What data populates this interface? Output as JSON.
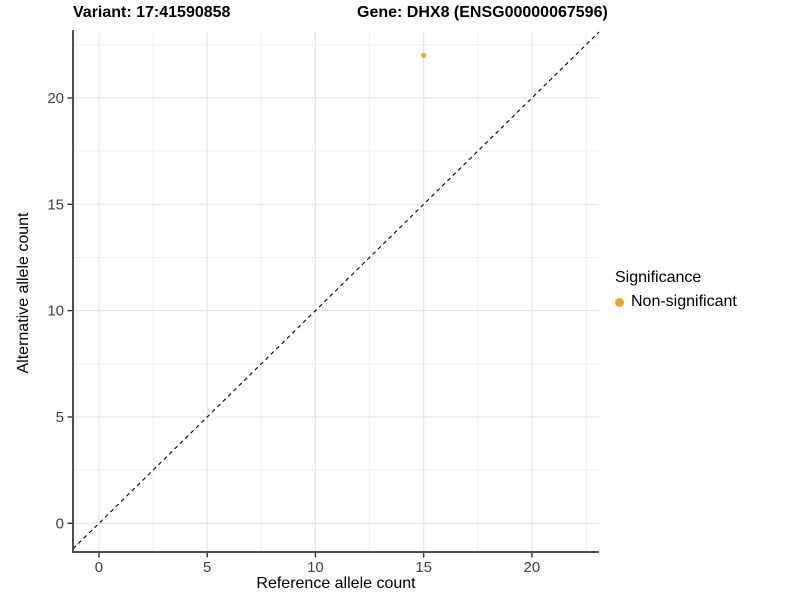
{
  "chart_data": {
    "type": "scatter",
    "titles": {
      "variant": "Variant: 17:41590858",
      "gene": "Gene: DHX8 (ENSG00000067596)"
    },
    "xlabel": "Reference allele count",
    "ylabel": "Alternative allele count",
    "xlim": [
      -1.2,
      23.1
    ],
    "ylim": [
      -1.35,
      23.1
    ],
    "x_ticks": [
      0,
      5,
      10,
      15,
      20
    ],
    "y_ticks": [
      0,
      5,
      10,
      15,
      20
    ],
    "x_minor_ticks": [
      2.5,
      7.5,
      12.5,
      17.5,
      22.5
    ],
    "y_minor_ticks": [
      2.5,
      7.5,
      12.5,
      17.5,
      22.5
    ],
    "grid": true,
    "series": [
      {
        "name": "Non-significant",
        "color": "#F9A030",
        "points": [
          {
            "x": 15,
            "y": 22
          }
        ]
      }
    ],
    "reference_line": {
      "slope": 1,
      "intercept": 0,
      "style": "dashed",
      "color": "#000000"
    },
    "legend": {
      "title": "Significance",
      "position": "right",
      "entries": [
        {
          "label": "Non-significant",
          "color": "#F9A030"
        }
      ]
    }
  },
  "colors": {
    "background": "#FFFFFF",
    "grid_major": "#E4E4E4",
    "grid_minor": "#EFEFEF",
    "axis_line": "#4D4D4D",
    "tick_mark": "#333333",
    "tick_label": "#404040",
    "point": "#F9A030"
  }
}
